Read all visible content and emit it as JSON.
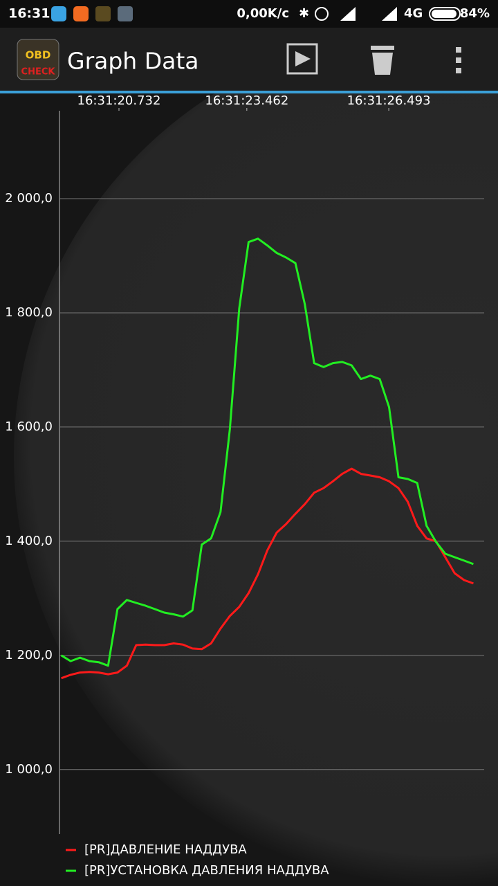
{
  "status_bar": {
    "time": "16:31",
    "speed": "0,00K/c",
    "network": "4G",
    "battery": "84%"
  },
  "app_bar": {
    "logo_top": "OBD",
    "logo_bottom": "CHECK",
    "title": "Graph Data"
  },
  "chart_data": {
    "type": "line",
    "x": [
      19.5,
      19.7,
      19.9,
      20.1,
      20.3,
      20.5,
      20.7,
      20.9,
      21.1,
      21.3,
      21.5,
      21.7,
      21.9,
      22.1,
      22.3,
      22.5,
      22.7,
      22.9,
      23.1,
      23.3,
      23.5,
      23.7,
      23.9,
      24.1,
      24.3,
      24.5,
      24.7,
      24.9,
      25.1,
      25.3,
      25.5,
      25.7,
      25.9,
      26.1,
      26.3,
      26.5,
      26.7,
      26.9,
      27.1,
      27.3,
      27.5,
      27.7,
      27.9,
      28.1,
      28.3
    ],
    "series": [
      {
        "name": "[PR]ДАВЛЕНИЕ НАДДУВА",
        "color": "#ff1a1a",
        "values": [
          1160,
          1166,
          1170,
          1171,
          1170,
          1167,
          1170,
          1182,
          1218,
          1219,
          1218,
          1218,
          1221,
          1219,
          1212,
          1211,
          1221,
          1247,
          1269,
          1285,
          1309,
          1342,
          1384,
          1415,
          1430,
          1448,
          1465,
          1485,
          1493,
          1505,
          1518,
          1527,
          1518,
          1515,
          1512,
          1505,
          1493,
          1469,
          1427,
          1405,
          1400,
          1372,
          1344,
          1332,
          1326
        ]
      },
      {
        "name": "[PR]УСТАНОВКА ДАВЛЕНИЯ НАДДУВА",
        "color": "#22ee22",
        "values": [
          1200,
          1190,
          1196,
          1190,
          1188,
          1182,
          1281,
          1297,
          1292,
          1287,
          1281,
          1275,
          1272,
          1268,
          1279,
          1394,
          1405,
          1451,
          1596,
          1808,
          1924,
          1930,
          1918,
          1905,
          1897,
          1887,
          1815,
          1712,
          1705,
          1712,
          1714,
          1708,
          1684,
          1690,
          1684,
          1635,
          1512,
          1509,
          1502,
          1427,
          1399,
          1378,
          1372,
          1366,
          1360
        ]
      }
    ],
    "xlim": [
      19.462,
      28.53
    ],
    "xticks": [
      {
        "value": 20.732,
        "label": "16:31:20.732"
      },
      {
        "value": 23.462,
        "label": "16:31:23.462"
      },
      {
        "value": 26.493,
        "label": "16:31:26.493"
      }
    ],
    "ylim": [
      887,
      2154
    ],
    "yticks": [
      {
        "value": 1000,
        "label": "1 000,0"
      },
      {
        "value": 1200,
        "label": "1 200,0"
      },
      {
        "value": 1400,
        "label": "1 400,0"
      },
      {
        "value": 1600,
        "label": "1 600,0"
      },
      {
        "value": 1800,
        "label": "1 800,0"
      },
      {
        "value": 2000,
        "label": "2 000,0"
      }
    ],
    "grid": true
  }
}
